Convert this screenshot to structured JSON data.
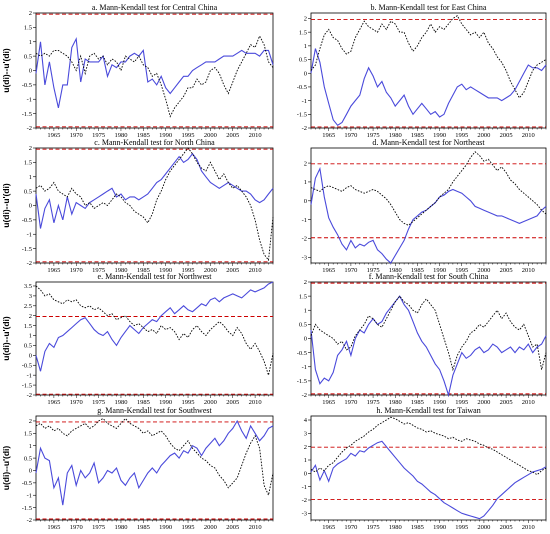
{
  "figure": {
    "ylabel": "u(di)--u'(di)",
    "x_ticks": [
      1965,
      1970,
      1975,
      1980,
      1985,
      1990,
      1995,
      2000,
      2005,
      2010
    ],
    "colors": {
      "uf": "#4a4adb",
      "ub": "#000000",
      "threshold": "#cc0000"
    }
  },
  "chart_data": [
    {
      "type": "line",
      "title": "a. Mann-Kendall test for Central China",
      "x_start": 1961,
      "x_end": 2014,
      "ylim": [
        -2,
        2
      ],
      "yticks": [
        -2,
        -1.5,
        -1,
        -0.5,
        0,
        0.5,
        1,
        1.5,
        2
      ],
      "thresholds": [
        1.96,
        -1.96
      ],
      "series": [
        {
          "style": "solid",
          "values": [
            -0.1,
            1.0,
            -0.5,
            0.3,
            -0.6,
            -1.3,
            -0.5,
            -0.5,
            0.8,
            1.1,
            -0.4,
            0.4,
            0.3,
            0.3,
            0.3,
            0.5,
            -0.2,
            0.2,
            0.1,
            0.3,
            0.3,
            0.5,
            0.6,
            0.5,
            0.7,
            -0.4,
            -0.3,
            -0.5,
            -0.2,
            -0.6,
            -0.8,
            -0.6,
            -0.4,
            -0.2,
            -0.2,
            0.0,
            0.1,
            0.2,
            0.3,
            0.3,
            0.3,
            0.4,
            0.5,
            0.5,
            0.5,
            0.6,
            0.7,
            0.6,
            0.6,
            0.6,
            0.5,
            0.7,
            0.7,
            0.2
          ]
        },
        {
          "style": "dotted",
          "values": [
            0.6,
            0.5,
            0.6,
            0.5,
            0.7,
            0.7,
            0.6,
            0.5,
            0.3,
            0.0,
            0.5,
            -0.1,
            0.5,
            0.6,
            0.4,
            0.5,
            0.2,
            0.4,
            0.3,
            0.0,
            0.5,
            0.4,
            0.3,
            0.5,
            0.2,
            0.1,
            -0.2,
            -0.1,
            -0.5,
            -1.0,
            -1.6,
            -1.3,
            -1.1,
            -0.9,
            -0.6,
            -0.6,
            -0.3,
            -0.5,
            -0.4,
            0.0,
            0.1,
            -0.1,
            -0.5,
            -0.8,
            -0.4,
            0.0,
            0.3,
            0.6,
            0.9,
            0.8,
            1.2,
            0.9,
            0.3,
            0.1
          ]
        }
      ]
    },
    {
      "type": "line",
      "title": "b. Mann-Kendall test for East China",
      "x_start": 1961,
      "x_end": 2014,
      "ylim": [
        -2,
        2.2
      ],
      "yticks": [
        -2,
        -1.5,
        -1,
        -0.5,
        0,
        0.5,
        1,
        1.5,
        2
      ],
      "thresholds": [
        1.96,
        -1.96
      ],
      "series": [
        {
          "style": "solid",
          "values": [
            0.0,
            0.9,
            0.4,
            -0.5,
            -1.1,
            -1.7,
            -1.9,
            -1.8,
            -1.5,
            -1.2,
            -1.0,
            -0.8,
            -0.2,
            0.2,
            -0.1,
            -0.5,
            -0.3,
            -0.7,
            -0.9,
            -1.2,
            -1.0,
            -0.8,
            -1.2,
            -1.5,
            -1.3,
            -1.1,
            -1.3,
            -1.5,
            -1.4,
            -1.6,
            -1.5,
            -1.1,
            -0.8,
            -0.5,
            -0.4,
            -0.6,
            -0.5,
            -0.6,
            -0.7,
            -0.8,
            -0.9,
            -0.9,
            -0.9,
            -1.0,
            -0.9,
            -0.8,
            -0.6,
            -0.3,
            0.0,
            0.3,
            0.2,
            0.2,
            0.1,
            0.3
          ]
        },
        {
          "style": "dotted",
          "values": [
            0.1,
            0.3,
            0.9,
            1.4,
            1.6,
            1.3,
            1.2,
            0.9,
            0.7,
            0.8,
            1.3,
            1.6,
            1.9,
            1.7,
            1.6,
            1.5,
            1.8,
            1.6,
            1.9,
            1.8,
            1.5,
            1.5,
            1.1,
            0.8,
            1.0,
            1.3,
            1.5,
            1.8,
            1.5,
            1.7,
            1.6,
            1.8,
            2.0,
            2.1,
            1.8,
            1.6,
            1.4,
            1.5,
            1.3,
            1.5,
            1.1,
            0.9,
            0.6,
            0.4,
            0.1,
            -0.3,
            -0.6,
            -0.9,
            -0.7,
            -0.3,
            0.1,
            0.3,
            0.4,
            0.5
          ]
        }
      ]
    },
    {
      "type": "line",
      "title": "c. Mann-Kendall test for North China",
      "x_start": 1961,
      "x_end": 2014,
      "ylim": [
        -2,
        2
      ],
      "yticks": [
        -2,
        -1.5,
        -1,
        -0.5,
        0,
        0.5,
        1,
        1.5,
        2
      ],
      "thresholds": [
        1.96,
        -1.96
      ],
      "series": [
        {
          "style": "solid",
          "values": [
            0.4,
            -0.8,
            -0.1,
            0.2,
            -0.6,
            0.0,
            -0.5,
            0.3,
            -0.3,
            0.1,
            0.0,
            -0.1,
            0.1,
            0.2,
            0.3,
            0.4,
            0.5,
            0.6,
            0.3,
            0.4,
            0.2,
            0.3,
            0.3,
            0.2,
            0.3,
            0.4,
            0.6,
            0.8,
            0.9,
            1.1,
            1.3,
            1.5,
            1.7,
            1.5,
            1.6,
            1.8,
            1.6,
            1.2,
            1.0,
            0.8,
            0.7,
            0.6,
            0.7,
            0.8,
            0.7,
            0.6,
            0.5,
            0.5,
            0.4,
            0.2,
            0.1,
            0.2,
            0.4,
            0.6
          ]
        },
        {
          "style": "dotted",
          "values": [
            0.6,
            0.7,
            0.5,
            0.6,
            0.8,
            0.5,
            0.4,
            0.3,
            0.6,
            0.4,
            0.3,
            0.0,
            0.1,
            -0.1,
            0.0,
            0.1,
            0.0,
            0.2,
            0.4,
            0.3,
            0.1,
            0.0,
            -0.2,
            -0.3,
            -0.4,
            -0.6,
            -0.3,
            0.2,
            0.5,
            0.9,
            1.2,
            1.4,
            1.6,
            1.8,
            2.0,
            1.8,
            1.5,
            1.3,
            1.2,
            1.5,
            1.2,
            0.9,
            1.1,
            0.8,
            0.6,
            0.7,
            0.5,
            0.3,
            0.0,
            -0.5,
            -1.2,
            -1.7,
            -1.9,
            -0.4
          ]
        }
      ]
    },
    {
      "type": "line",
      "title": "d. Mann-Kendall test for Northeast",
      "x_start": 1961,
      "x_end": 2014,
      "ylim": [
        -3.3,
        2.8
      ],
      "yticks": [
        -3,
        -2,
        -1,
        0,
        1,
        2
      ],
      "thresholds": [
        1.96,
        -1.96
      ],
      "series": [
        {
          "style": "solid",
          "values": [
            -0.2,
            1.2,
            1.7,
            0.2,
            -0.9,
            -1.4,
            -1.8,
            -2.3,
            -2.6,
            -2.1,
            -2.5,
            -2.3,
            -2.4,
            -2.2,
            -2.1,
            -2.6,
            -2.8,
            -3.1,
            -3.3,
            -2.9,
            -2.5,
            -2.1,
            -1.5,
            -1.0,
            -0.8,
            -0.6,
            -0.5,
            -0.3,
            -0.1,
            0.2,
            0.3,
            0.5,
            0.6,
            0.5,
            0.4,
            0.2,
            0.0,
            -0.3,
            -0.4,
            -0.5,
            -0.6,
            -0.7,
            -0.8,
            -0.8,
            -0.9,
            -1.0,
            -1.1,
            -1.2,
            -1.1,
            -1.0,
            -0.9,
            -0.8,
            -0.5,
            -0.3
          ]
        },
        {
          "style": "dotted",
          "values": [
            0.7,
            0.6,
            0.5,
            0.7,
            0.8,
            0.7,
            0.6,
            0.5,
            0.7,
            0.8,
            0.6,
            0.5,
            0.4,
            0.5,
            0.6,
            0.5,
            0.3,
            0.1,
            -0.2,
            -0.6,
            -1.0,
            -1.2,
            -1.3,
            -1.1,
            -0.9,
            -0.7,
            -0.5,
            -0.3,
            -0.1,
            0.2,
            0.4,
            0.6,
            1.0,
            1.3,
            1.6,
            1.9,
            2.3,
            2.6,
            2.4,
            2.1,
            2.2,
            1.9,
            1.6,
            1.8,
            1.5,
            1.1,
            0.9,
            0.6,
            0.4,
            0.2,
            0.0,
            -0.2,
            -0.5,
            -0.7
          ]
        }
      ]
    },
    {
      "type": "line",
      "title": "e. Mann-Kendall test for Northwest",
      "x_start": 1961,
      "x_end": 2014,
      "ylim": [
        -2,
        3.7
      ],
      "yticks": [
        -2,
        -1.5,
        -1,
        -0.5,
        0,
        0.5,
        1,
        1.5,
        2,
        2.5,
        3,
        3.5
      ],
      "thresholds": [
        1.96,
        -1.96
      ],
      "series": [
        {
          "style": "solid",
          "values": [
            0.0,
            -0.8,
            0.2,
            0.6,
            0.4,
            0.9,
            1.0,
            1.2,
            1.4,
            1.6,
            1.8,
            1.9,
            1.6,
            1.3,
            1.1,
            1.0,
            1.2,
            0.8,
            0.5,
            0.9,
            1.2,
            1.5,
            1.3,
            1.1,
            1.4,
            1.6,
            1.8,
            1.7,
            2.0,
            2.2,
            2.4,
            2.1,
            2.3,
            2.5,
            2.3,
            2.2,
            2.4,
            2.6,
            2.5,
            2.8,
            2.9,
            2.7,
            2.9,
            3.0,
            3.1,
            3.0,
            2.9,
            3.1,
            3.3,
            3.2,
            3.3,
            3.4,
            3.6,
            3.7
          ]
        },
        {
          "style": "dotted",
          "values": [
            3.5,
            3.3,
            3.0,
            3.1,
            2.8,
            2.7,
            2.6,
            2.8,
            2.7,
            2.8,
            2.5,
            2.4,
            2.5,
            2.3,
            2.4,
            2.2,
            2.0,
            2.1,
            1.8,
            1.9,
            2.0,
            1.7,
            1.5,
            1.6,
            1.4,
            1.2,
            1.3,
            1.1,
            1.5,
            1.3,
            1.4,
            1.2,
            0.8,
            1.1,
            0.9,
            1.3,
            1.5,
            1.2,
            1.0,
            1.3,
            1.5,
            1.7,
            1.5,
            1.2,
            1.0,
            1.4,
            1.1,
            0.6,
            0.3,
            0.6,
            0.2,
            -0.3,
            -1.0,
            0.1
          ]
        }
      ]
    },
    {
      "type": "line",
      "title": "f. Mann-Kendall test for South China",
      "x_start": 1961,
      "x_end": 2014,
      "ylim": [
        -2,
        2
      ],
      "yticks": [
        -2,
        -1.5,
        -1,
        -0.5,
        0,
        0.5,
        1,
        1.5,
        2
      ],
      "thresholds": [
        1.96,
        -1.96
      ],
      "series": [
        {
          "style": "solid",
          "values": [
            0.3,
            -1.1,
            -1.6,
            -1.4,
            -1.5,
            -1.2,
            -0.6,
            -0.4,
            -0.1,
            -0.6,
            0.0,
            0.3,
            0.2,
            0.5,
            0.7,
            0.5,
            0.6,
            0.9,
            1.1,
            1.3,
            1.5,
            1.2,
            1.0,
            0.6,
            0.2,
            -0.1,
            -0.3,
            -0.6,
            -0.9,
            -1.1,
            -1.5,
            -2.0,
            -1.3,
            -0.9,
            -0.5,
            -0.7,
            -0.6,
            -0.4,
            -0.3,
            -0.5,
            -0.4,
            -0.2,
            -0.3,
            -0.5,
            -0.4,
            -0.3,
            -0.5,
            -0.3,
            -0.4,
            -0.2,
            -0.5,
            -0.3,
            -0.2,
            0.1
          ]
        },
        {
          "style": "dotted",
          "values": [
            0.1,
            0.5,
            0.3,
            0.2,
            0.1,
            0.0,
            -0.2,
            -0.1,
            -0.4,
            -0.3,
            0.1,
            0.3,
            0.5,
            0.8,
            0.7,
            0.5,
            0.4,
            0.7,
            1.0,
            1.3,
            1.5,
            1.3,
            1.2,
            1.0,
            0.9,
            1.2,
            1.4,
            1.2,
            1.0,
            0.5,
            0.0,
            -0.5,
            -1.1,
            -0.6,
            -0.3,
            -0.1,
            0.2,
            0.3,
            0.5,
            0.4,
            0.6,
            0.8,
            1.0,
            0.7,
            0.9,
            0.6,
            0.4,
            0.3,
            0.5,
            0.1,
            -0.3,
            -0.2,
            -1.1,
            -0.5
          ]
        }
      ]
    },
    {
      "type": "line",
      "title": "g. Mann-Kendall test for Southwest",
      "x_start": 1961,
      "x_end": 2014,
      "ylim": [
        -2,
        2.2
      ],
      "yticks": [
        -2,
        -1.5,
        -1,
        -0.5,
        0,
        0.5,
        1,
        1.5,
        2
      ],
      "thresholds": [
        1.96,
        -1.96
      ],
      "series": [
        {
          "style": "solid",
          "values": [
            -0.1,
            0.9,
            0.5,
            0.4,
            -0.7,
            -0.3,
            -1.4,
            -0.1,
            0.2,
            -0.6,
            0.0,
            -0.3,
            -0.1,
            0.3,
            -0.5,
            -0.3,
            0.0,
            -0.1,
            0.1,
            -0.4,
            -0.6,
            -0.3,
            -0.1,
            -0.7,
            -0.4,
            -0.1,
            0.1,
            -0.1,
            0.2,
            0.4,
            0.6,
            0.7,
            0.5,
            0.8,
            0.7,
            1.0,
            0.9,
            0.6,
            0.9,
            1.1,
            1.3,
            1.0,
            1.2,
            1.5,
            1.7,
            2.0,
            1.6,
            1.3,
            1.8,
            1.5,
            1.2,
            1.4,
            1.7,
            1.8
          ]
        },
        {
          "style": "dotted",
          "values": [
            1.8,
            1.9,
            1.7,
            1.8,
            1.6,
            1.7,
            1.5,
            1.4,
            1.6,
            1.7,
            1.8,
            1.9,
            1.7,
            1.8,
            2.0,
            2.1,
            1.9,
            1.8,
            1.7,
            1.9,
            2.1,
            1.9,
            1.8,
            1.7,
            1.5,
            1.6,
            1.4,
            1.5,
            1.6,
            1.4,
            1.1,
            0.9,
            0.8,
            1.0,
            1.2,
            0.9,
            0.7,
            0.5,
            0.4,
            0.2,
            0.1,
            -0.2,
            -0.4,
            -0.7,
            -0.5,
            -0.3,
            0.2,
            0.7,
            1.1,
            1.4,
            0.9,
            -0.6,
            -1.0,
            -0.1
          ]
        }
      ]
    },
    {
      "type": "line",
      "title": "h. Mann-Kendall test for Taiwan",
      "x_start": 1961,
      "x_end": 2014,
      "ylim": [
        -3.5,
        4.3
      ],
      "yticks": [
        -3,
        -2,
        -1,
        0,
        1,
        2,
        3,
        4
      ],
      "thresholds": [
        1.96,
        -1.96
      ],
      "series": [
        {
          "style": "solid",
          "values": [
            0.1,
            0.6,
            -0.5,
            0.2,
            -0.6,
            0.4,
            0.7,
            0.9,
            1.1,
            1.5,
            1.3,
            1.7,
            1.6,
            1.9,
            2.1,
            2.3,
            2.4,
            2.0,
            1.6,
            1.2,
            0.8,
            0.4,
            0.1,
            -0.2,
            -0.6,
            -0.8,
            -1.1,
            -1.4,
            -1.6,
            -1.9,
            -2.2,
            -2.4,
            -2.6,
            -2.8,
            -3.0,
            -3.1,
            -3.2,
            -3.3,
            -3.4,
            -3.2,
            -2.8,
            -2.4,
            -1.9,
            -1.6,
            -1.3,
            -1.0,
            -0.7,
            -0.5,
            -0.3,
            -0.1,
            0.1,
            0.2,
            0.3,
            0.5
          ]
        },
        {
          "style": "dotted",
          "values": [
            0.3,
            0.1,
            0.4,
            0.2,
            0.6,
            0.8,
            1.2,
            1.6,
            1.9,
            2.1,
            2.4,
            2.6,
            2.8,
            3.1,
            3.3,
            3.6,
            3.8,
            4.0,
            4.2,
            4.1,
            3.9,
            3.7,
            3.8,
            3.6,
            3.4,
            3.3,
            3.1,
            3.2,
            3.0,
            2.9,
            2.8,
            2.6,
            2.7,
            2.5,
            2.4,
            2.6,
            2.5,
            2.4,
            2.2,
            2.1,
            1.9,
            1.8,
            1.6,
            1.4,
            1.2,
            1.0,
            0.8,
            0.6,
            0.4,
            0.2,
            0.1,
            -0.1,
            0.2,
            0.4
          ]
        }
      ]
    }
  ]
}
